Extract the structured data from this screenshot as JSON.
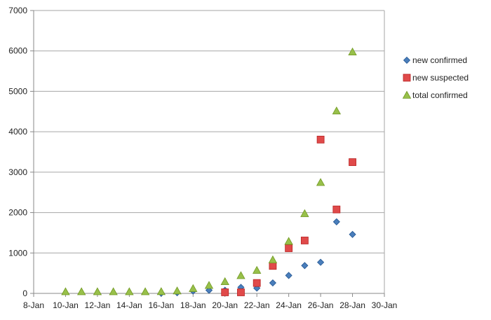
{
  "chart_data": {
    "type": "scatter",
    "title": "",
    "xlabel": "",
    "ylabel": "",
    "xlim": [
      "8-Jan",
      "30-Jan"
    ],
    "ylim": [
      0,
      7000
    ],
    "x_ticks": [
      "8-Jan",
      "10-Jan",
      "12-Jan",
      "14-Jan",
      "16-Jan",
      "18-Jan",
      "20-Jan",
      "22-Jan",
      "24-Jan",
      "26-Jan",
      "28-Jan",
      "30-Jan"
    ],
    "y_ticks": [
      "0",
      "1000",
      "2000",
      "3000",
      "4000",
      "5000",
      "6000",
      "7000"
    ],
    "grid": "horizontal",
    "legend_position": "right",
    "series": [
      {
        "name": "new confirmed",
        "marker": "diamond",
        "color": "#4a7ebb",
        "points": [
          {
            "x": "16-Jan",
            "y": 4
          },
          {
            "x": "17-Jan",
            "y": 17
          },
          {
            "x": "18-Jan",
            "y": 59
          },
          {
            "x": "19-Jan",
            "y": 77
          },
          {
            "x": "20-Jan",
            "y": 77
          },
          {
            "x": "21-Jan",
            "y": 149
          },
          {
            "x": "22-Jan",
            "y": 131
          },
          {
            "x": "23-Jan",
            "y": 259
          },
          {
            "x": "24-Jan",
            "y": 444
          },
          {
            "x": "25-Jan",
            "y": 688
          },
          {
            "x": "26-Jan",
            "y": 769
          },
          {
            "x": "27-Jan",
            "y": 1771
          },
          {
            "x": "28-Jan",
            "y": 1459
          }
        ]
      },
      {
        "name": "new suspected",
        "marker": "square",
        "color": "#e04a4a",
        "points": [
          {
            "x": "20-Jan",
            "y": 27
          },
          {
            "x": "21-Jan",
            "y": 26
          },
          {
            "x": "22-Jan",
            "y": 257
          },
          {
            "x": "23-Jan",
            "y": 680
          },
          {
            "x": "24-Jan",
            "y": 1118
          },
          {
            "x": "25-Jan",
            "y": 1309
          },
          {
            "x": "26-Jan",
            "y": 3806
          },
          {
            "x": "27-Jan",
            "y": 2077
          },
          {
            "x": "28-Jan",
            "y": 3248
          }
        ]
      },
      {
        "name": "total confirmed",
        "marker": "triangle",
        "color": "#98c04a",
        "points": [
          {
            "x": "10-Jan",
            "y": 41
          },
          {
            "x": "11-Jan",
            "y": 41
          },
          {
            "x": "12-Jan",
            "y": 41
          },
          {
            "x": "13-Jan",
            "y": 41
          },
          {
            "x": "14-Jan",
            "y": 41
          },
          {
            "x": "15-Jan",
            "y": 41
          },
          {
            "x": "16-Jan",
            "y": 45
          },
          {
            "x": "17-Jan",
            "y": 62
          },
          {
            "x": "18-Jan",
            "y": 121
          },
          {
            "x": "19-Jan",
            "y": 198
          },
          {
            "x": "20-Jan",
            "y": 291
          },
          {
            "x": "21-Jan",
            "y": 440
          },
          {
            "x": "22-Jan",
            "y": 571
          },
          {
            "x": "23-Jan",
            "y": 830
          },
          {
            "x": "24-Jan",
            "y": 1287
          },
          {
            "x": "25-Jan",
            "y": 1975
          },
          {
            "x": "26-Jan",
            "y": 2744
          },
          {
            "x": "27-Jan",
            "y": 4515
          },
          {
            "x": "28-Jan",
            "y": 5974
          }
        ]
      }
    ]
  }
}
